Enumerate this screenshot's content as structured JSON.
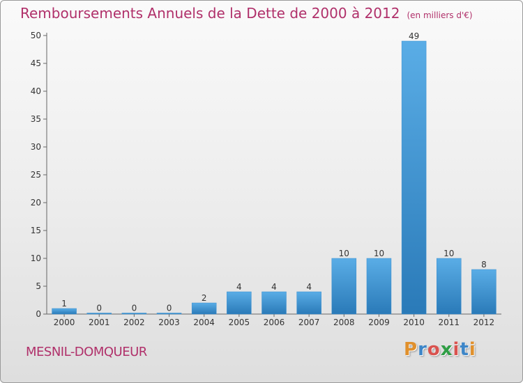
{
  "title": "Remboursements Annuels de la Dette de 2000 à 2012",
  "subtitle": "(en milliers d'€)",
  "town": "MESNIL-DOMQUEUR",
  "brand": {
    "text": "Proxiti",
    "letters": [
      "P",
      "r",
      "o",
      "x",
      "i",
      "t",
      "i"
    ],
    "colors": [
      "#e0902c",
      "#3d86c8",
      "#d9534f",
      "#2f9e45",
      "#d9534f",
      "#3d86c8",
      "#e0902c"
    ]
  },
  "colors": {
    "bar_light": "#5aade6",
    "bar_dark": "#2a7ab8",
    "title": "#b0306a"
  },
  "chart_data": {
    "type": "bar",
    "categories": [
      "2000",
      "2001",
      "2002",
      "2003",
      "2004",
      "2005",
      "2006",
      "2007",
      "2008",
      "2009",
      "2010",
      "2011",
      "2012"
    ],
    "values": [
      1,
      0,
      0,
      0,
      2,
      4,
      4,
      4,
      10,
      10,
      49,
      10,
      8
    ],
    "data_labels": [
      "1",
      "0",
      "0",
      "0",
      "2",
      "4",
      "4",
      "4",
      "10",
      "10",
      "49",
      "10",
      "8"
    ],
    "ylim": [
      0,
      50
    ],
    "yticks": [
      0,
      5,
      10,
      15,
      20,
      25,
      30,
      35,
      40,
      45,
      50
    ],
    "ytick_labels": [
      "0",
      "5",
      "10",
      "15",
      "20",
      "25",
      "30",
      "35",
      "40",
      "45",
      "50"
    ],
    "grid": false
  }
}
